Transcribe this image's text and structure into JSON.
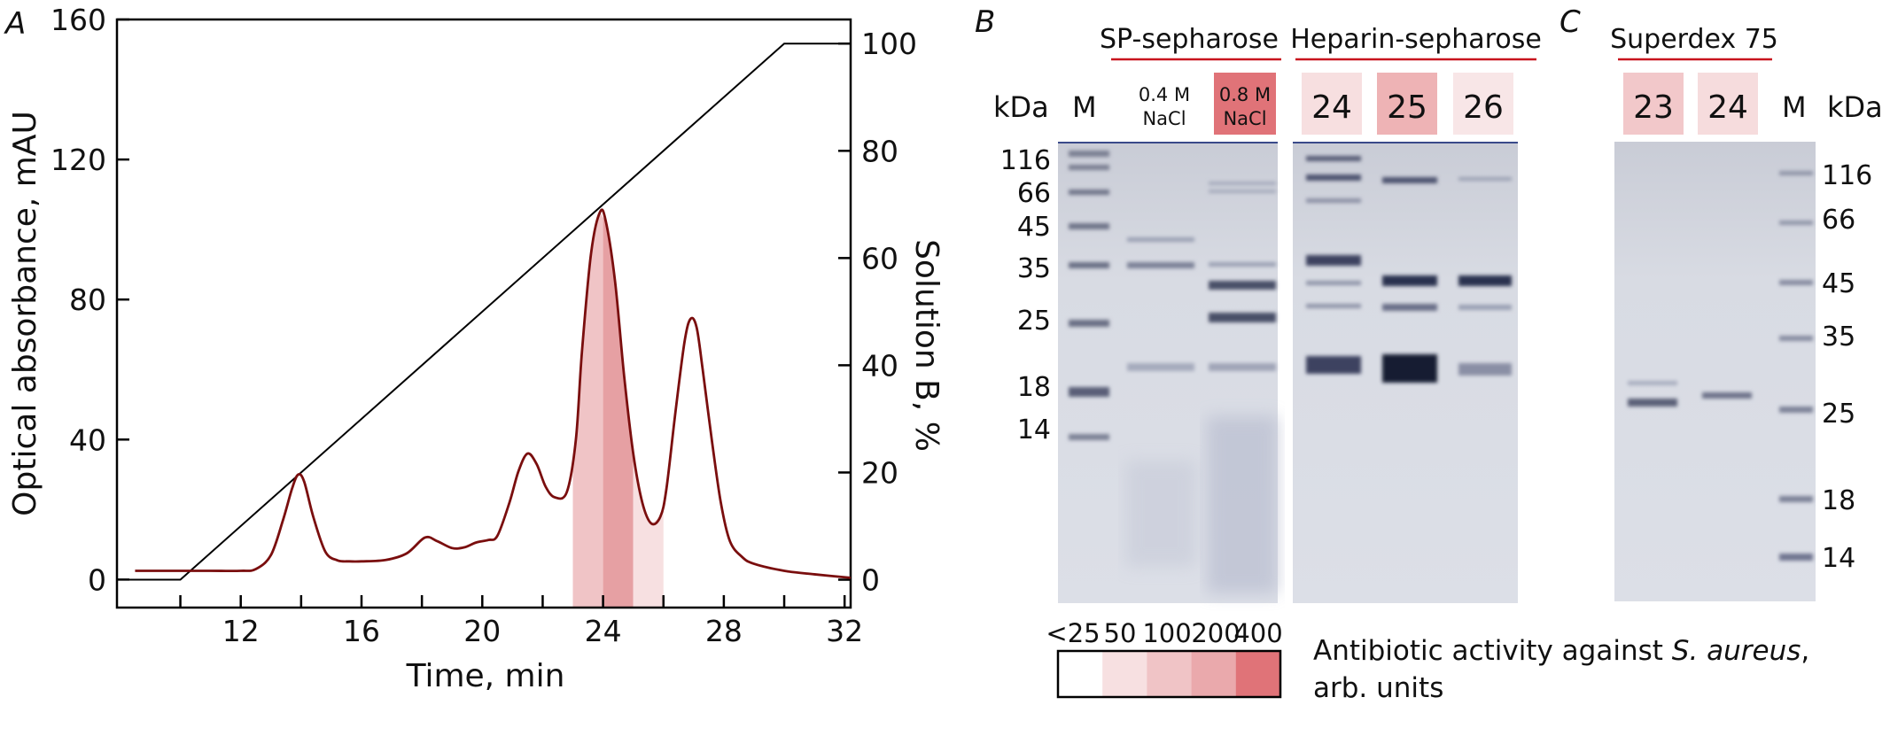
{
  "panel_letters": [
    "A",
    "B",
    "C"
  ],
  "chart_data": {
    "type": "line",
    "xlabel": "Time, min",
    "ylabel_left": "Optical absorbance, mAU",
    "ylabel_right": "Solution B, %",
    "xlim": [
      7.9,
      32.2
    ],
    "ylim_left": [
      -8,
      160
    ],
    "ylim_right": [
      -5.2,
      104.5
    ],
    "x_ticks": [
      12,
      16,
      20,
      24,
      28,
      32
    ],
    "y_left_ticks": [
      0,
      40,
      80,
      120,
      160
    ],
    "y_right_ticks": [
      0,
      20,
      40,
      60,
      80,
      100
    ],
    "grid": false,
    "series": [
      {
        "role": "absorbance",
        "color": "#7a0e0e",
        "x": [
          8.5,
          10,
          11,
          12,
          12.5,
          13,
          13.4,
          13.7,
          13.9,
          14.1,
          14.4,
          14.8,
          15.2,
          15.6,
          16,
          16.8,
          17.5,
          18.1,
          18.5,
          19,
          19.4,
          19.8,
          20.2,
          20.5,
          20.9,
          21.2,
          21.5,
          21.8,
          22.1,
          22.4,
          22.8,
          23.1,
          23.3,
          23.6,
          23.9,
          24.1,
          24.4,
          24.7,
          25.0,
          25.3,
          25.6,
          25.9,
          26.1,
          26.4,
          26.7,
          26.9,
          27.1,
          27.3,
          27.6,
          27.9,
          28.2,
          28.6,
          29.0,
          30.0,
          31.0,
          32.2
        ],
        "y": [
          2.5,
          2.5,
          2.5,
          2.5,
          3.0,
          7.0,
          17.0,
          26.0,
          30.0,
          28.0,
          18.0,
          8.0,
          5.5,
          5.2,
          5.2,
          5.6,
          7.5,
          12.0,
          11.0,
          9.0,
          9.2,
          10.6,
          11.3,
          12.5,
          22.0,
          31.0,
          36.0,
          33.0,
          26.5,
          23.5,
          25.0,
          40.0,
          65.0,
          93.0,
          105.0,
          102.0,
          85.0,
          58.0,
          36.0,
          22.0,
          16.0,
          18.0,
          26.0,
          48.0,
          68.0,
          74.5,
          72.0,
          60.0,
          40.0,
          22.0,
          11.0,
          6.5,
          4.5,
          2.5,
          1.5,
          0.5
        ]
      },
      {
        "role": "gradient",
        "color": "#000000",
        "x": [
          8.0,
          10.0,
          30.0,
          32.2
        ],
        "y": [
          0,
          0,
          100,
          100
        ]
      }
    ],
    "fraction_shading": [
      {
        "x_start": 23.0,
        "x_end": 24.0,
        "color": "#f0c4c6"
      },
      {
        "x_start": 24.0,
        "x_end": 25.0,
        "color": "#e6a0a3"
      },
      {
        "x_start": 25.0,
        "x_end": 26.0,
        "color": "#f7e0e1"
      }
    ]
  },
  "gels": {
    "kda_label": "kDa",
    "marker_label": "M",
    "left_mw_labels": [
      "116",
      "66",
      "45",
      "35",
      "25",
      "18",
      "14"
    ],
    "right_mw_labels": [
      "116",
      "66",
      "45",
      "35",
      "25",
      "18",
      "14"
    ],
    "sp_title": "SP-sepharose",
    "heparin_title": "Heparin-sepharose",
    "superdex_title": "Superdex 75",
    "sp_lanes": [
      {
        "line1": "0.4 M",
        "line2": "NaCl",
        "color": "#ffffff"
      },
      {
        "line1": "0.8 M",
        "line2": "NaCl",
        "color": "#e07378"
      }
    ],
    "heparin_lanes": [
      {
        "label": "24",
        "color": "#f7dfe0"
      },
      {
        "label": "25",
        "color": "#eeb3b5"
      },
      {
        "label": "26",
        "color": "#f8e6e7"
      }
    ],
    "superdex_lanes": [
      {
        "label": "23",
        "color": "#f2c8ca"
      },
      {
        "label": "24",
        "color": "#f6dcdd"
      }
    ],
    "title_underline_color": "#c8141e",
    "gel_background": "#d6d9e2"
  },
  "legend": {
    "tick_labels": [
      "<25",
      "50",
      "100",
      "200",
      "400"
    ],
    "colors": [
      "#ffffff",
      "#f7e0e1",
      "#f0c4c6",
      "#eaa9ac",
      "#e07378"
    ],
    "text_line1_prefix": "Antibiotic activity against ",
    "text_line1_italic": "S. aureus",
    "text_line1_suffix": ",",
    "text_line2": "arb. units"
  }
}
